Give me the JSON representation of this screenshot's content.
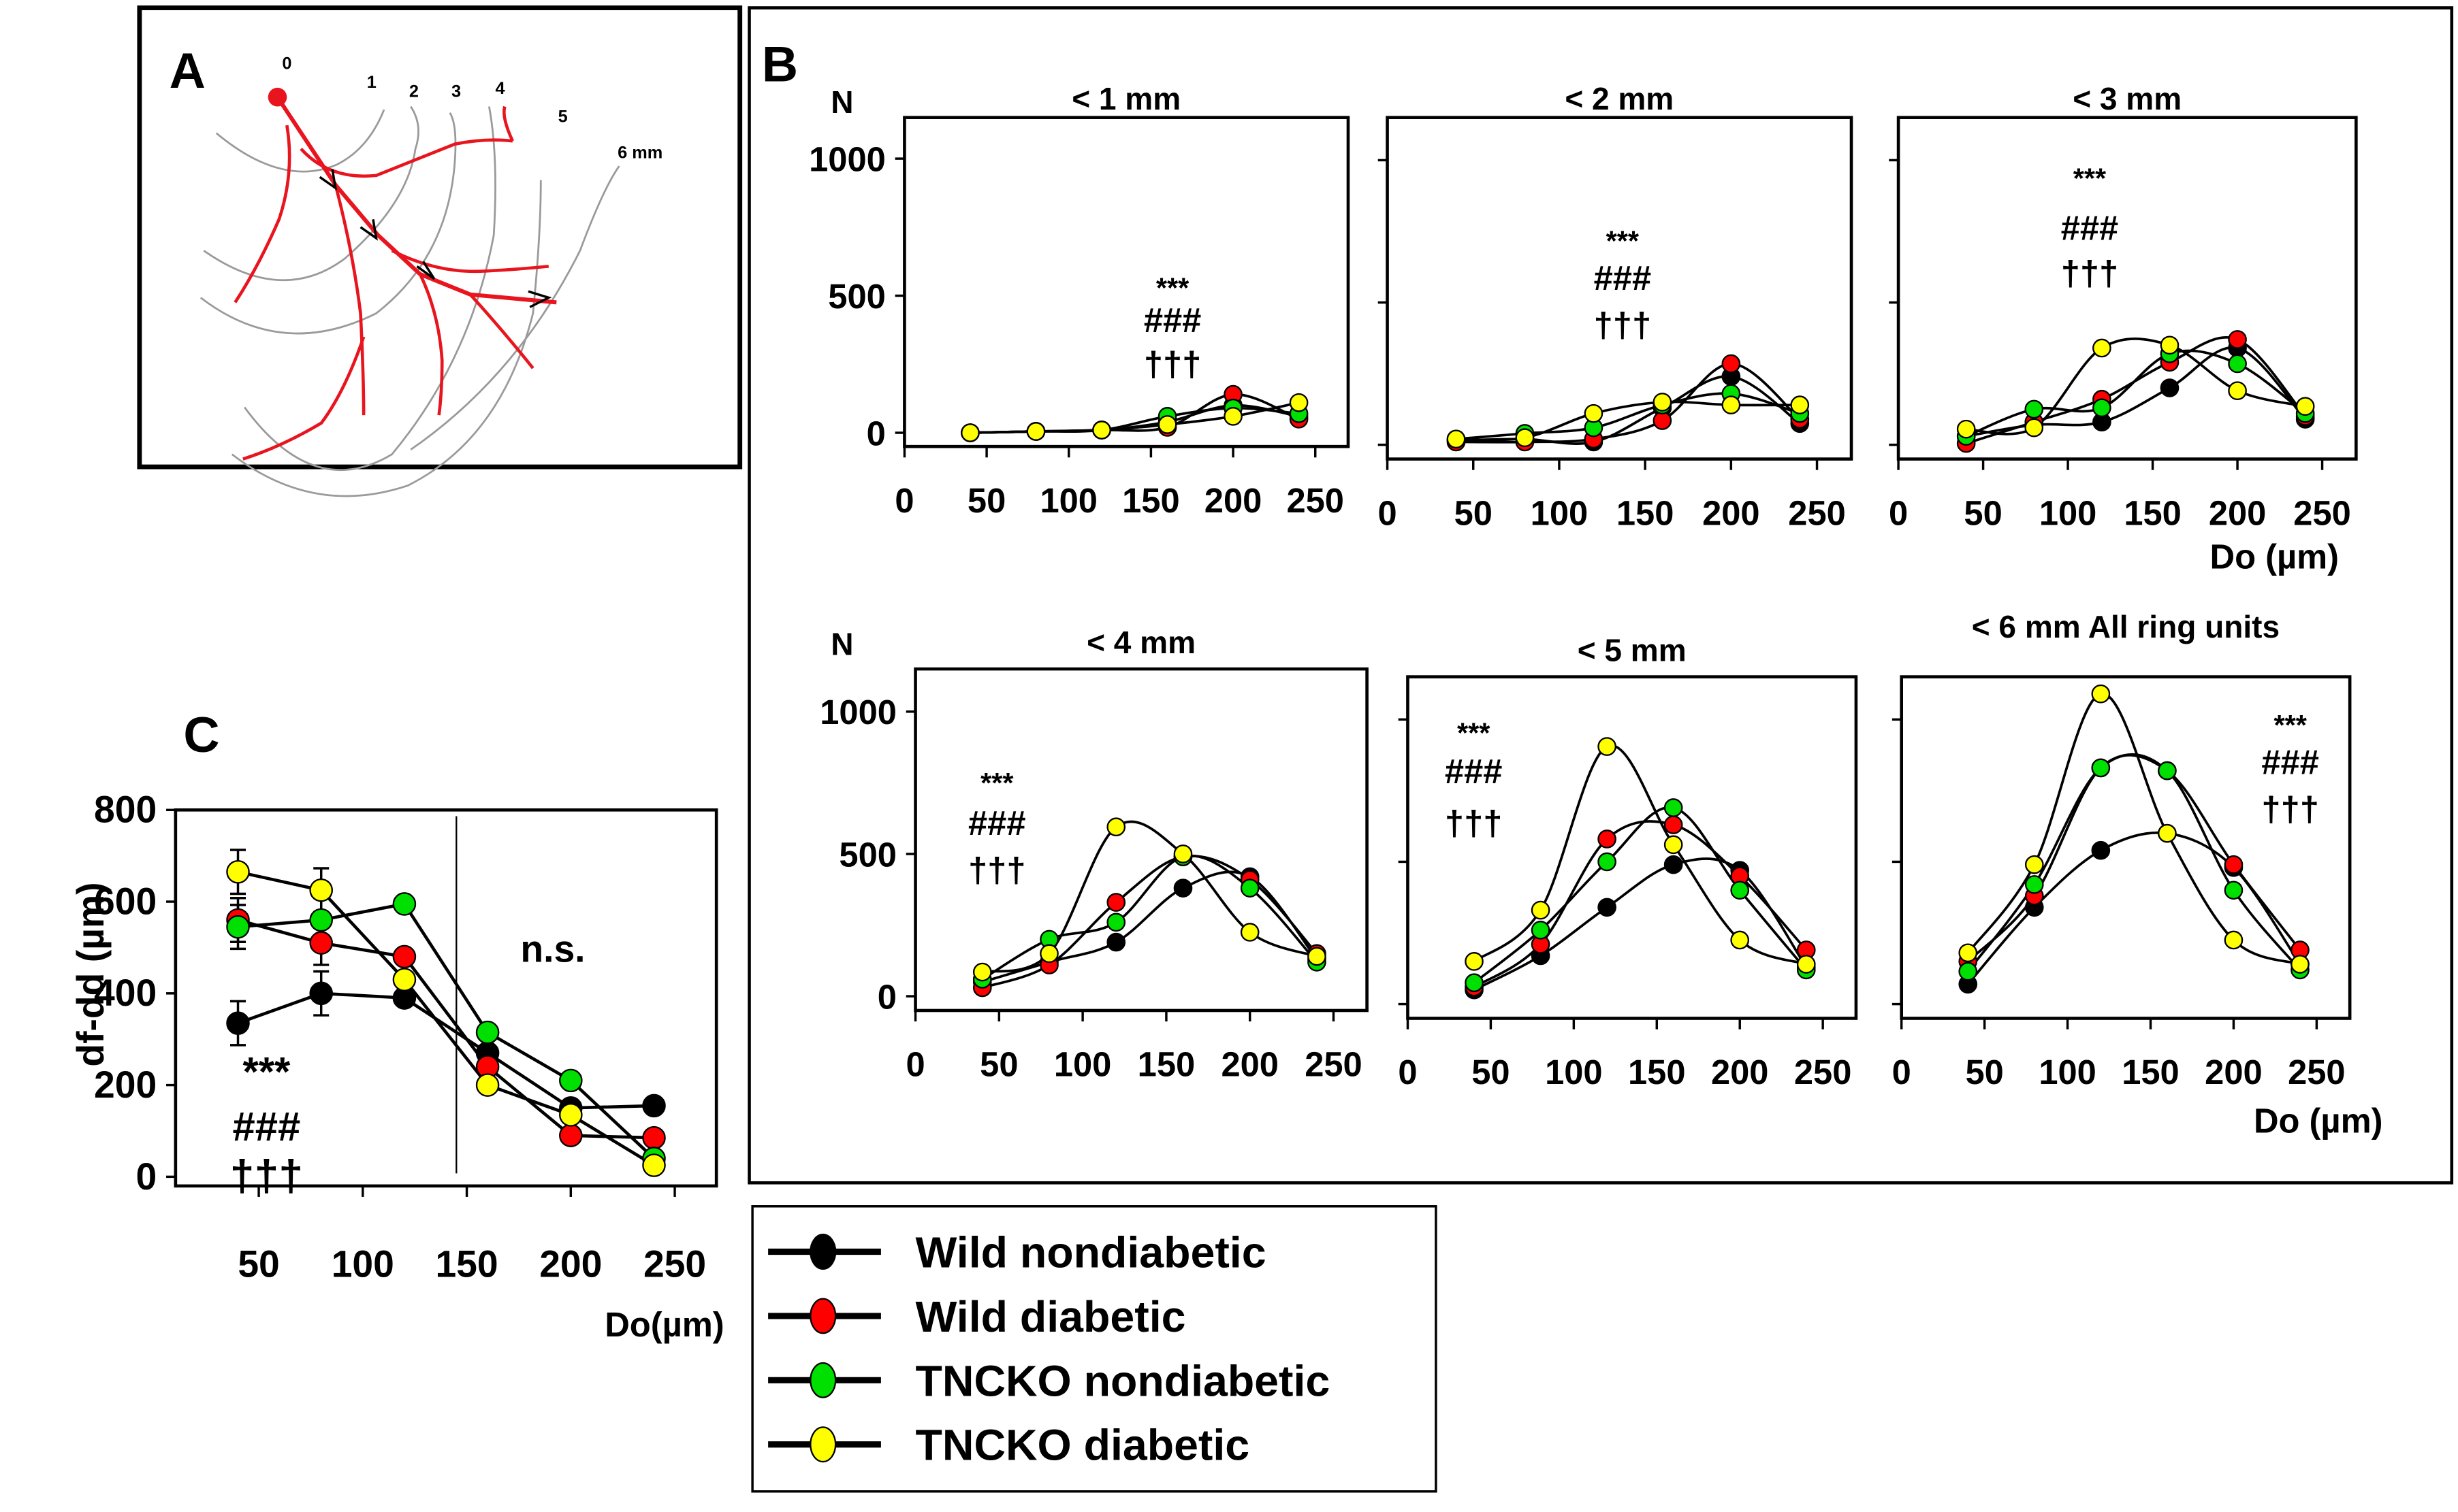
{
  "panel_a": {
    "label": "A",
    "ring_labels": [
      "0",
      "1",
      "2",
      "3",
      "4",
      "5",
      "6 mm"
    ]
  },
  "panel_b": {
    "label": "B",
    "ylabel": "N",
    "xlabel": "Do (µm)"
  },
  "panel_c": {
    "label": "C",
    "ns_label": "n.s."
  },
  "colors": {
    "Wild nondiabetic": "#000000",
    "Wild diabetic": "#ff0000",
    "TNCKO nondiabetic": "#00e000",
    "TNCKO diabetic": "#ffff00"
  },
  "legend": [
    {
      "label": "Wild  nondiabetic",
      "color": "#000000"
    },
    {
      "label": "Wild diabetic",
      "color": "#ff0000"
    },
    {
      "label": "TNCKO nondiabetic",
      "color": "#00e000"
    },
    {
      "label": "TNCKO diabetic",
      "color": "#ffff00"
    }
  ],
  "chart_data": [
    {
      "type": "line",
      "id": "b1",
      "title": "< 1 mm",
      "ylabel": "N",
      "xlabel": "",
      "x": [
        40,
        80,
        120,
        160,
        200,
        240
      ],
      "xlim": [
        0,
        270
      ],
      "ylim": [
        -50,
        1150
      ],
      "xticks": [
        0,
        50,
        100,
        150,
        200,
        250
      ],
      "yticks": [
        0,
        500,
        1000
      ],
      "annotation": [
        "***",
        "###",
        "†††"
      ],
      "series": [
        {
          "name": "Wild nondiabetic",
          "values": [
            0,
            5,
            10,
            40,
            100,
            60
          ]
        },
        {
          "name": "Wild diabetic",
          "values": [
            0,
            5,
            10,
            20,
            140,
            50
          ]
        },
        {
          "name": "TNCKO nondiabetic",
          "values": [
            0,
            5,
            10,
            60,
            90,
            70
          ]
        },
        {
          "name": "TNCKO diabetic",
          "values": [
            0,
            5,
            10,
            30,
            60,
            110
          ]
        }
      ]
    },
    {
      "type": "line",
      "id": "b2",
      "title": "< 2 mm",
      "ylabel": "",
      "xlabel": "",
      "x": [
        40,
        80,
        120,
        160,
        200,
        240
      ],
      "xlim": [
        0,
        270
      ],
      "ylim": [
        -50,
        1150
      ],
      "xticks": [
        0,
        50,
        100,
        150,
        200,
        250
      ],
      "yticks": [
        0,
        500,
        1000
      ],
      "annotation": [
        "***",
        "###",
        "†††"
      ],
      "series": [
        {
          "name": "Wild nondiabetic",
          "values": [
            15,
            20,
            10,
            130,
            240,
            75
          ]
        },
        {
          "name": "Wild diabetic",
          "values": [
            10,
            10,
            20,
            85,
            285,
            90
          ]
        },
        {
          "name": "TNCKO nondiabetic",
          "values": [
            20,
            40,
            60,
            140,
            180,
            110
          ]
        },
        {
          "name": "TNCKO diabetic",
          "values": [
            20,
            25,
            110,
            150,
            140,
            140
          ]
        }
      ]
    },
    {
      "type": "line",
      "id": "b3",
      "title": "< 3 mm",
      "ylabel": "",
      "xlabel": "Do (µm)",
      "x": [
        40,
        80,
        120,
        160,
        200,
        240
      ],
      "xlim": [
        0,
        270
      ],
      "ylim": [
        -50,
        1150
      ],
      "xticks": [
        0,
        50,
        100,
        150,
        200,
        250
      ],
      "yticks": [
        0,
        500,
        1000
      ],
      "annotation": [
        "***",
        "###",
        "†††"
      ],
      "series": [
        {
          "name": "Wild nondiabetic",
          "values": [
            30,
            70,
            80,
            200,
            340,
            90
          ]
        },
        {
          "name": "Wild diabetic",
          "values": [
            5,
            80,
            160,
            290,
            370,
            100
          ]
        },
        {
          "name": "TNCKO nondiabetic",
          "values": [
            30,
            125,
            130,
            320,
            285,
            110
          ]
        },
        {
          "name": "TNCKO diabetic",
          "values": [
            55,
            60,
            340,
            350,
            190,
            135
          ]
        }
      ]
    },
    {
      "type": "line",
      "id": "b4",
      "title": "< 4 mm",
      "ylabel": "N",
      "xlabel": "",
      "x": [
        40,
        80,
        120,
        160,
        200,
        240
      ],
      "xlim": [
        0,
        270
      ],
      "ylim": [
        -50,
        1150
      ],
      "xticks": [
        0,
        50,
        100,
        150,
        200,
        250
      ],
      "yticks": [
        0,
        500,
        1000
      ],
      "annotation": [
        "***",
        "###",
        "†††"
      ],
      "series": [
        {
          "name": "Wild nondiabetic",
          "values": [
            50,
            120,
            190,
            380,
            420,
            130
          ]
        },
        {
          "name": "Wild diabetic",
          "values": [
            30,
            110,
            330,
            490,
            410,
            150
          ]
        },
        {
          "name": "TNCKO nondiabetic",
          "values": [
            60,
            200,
            260,
            490,
            380,
            120
          ]
        },
        {
          "name": "TNCKO diabetic",
          "values": [
            85,
            150,
            595,
            500,
            225,
            140
          ]
        }
      ]
    },
    {
      "type": "line",
      "id": "b5",
      "title": "< 5 mm",
      "ylabel": "",
      "xlabel": "",
      "x": [
        40,
        80,
        120,
        160,
        200,
        240
      ],
      "xlim": [
        0,
        270
      ],
      "ylim": [
        -50,
        1150
      ],
      "xticks": [
        0,
        50,
        100,
        150,
        200,
        250
      ],
      "yticks": [
        0,
        500,
        1000
      ],
      "annotation": [
        "***",
        "###",
        "†††"
      ],
      "series": [
        {
          "name": "Wild nondiabetic",
          "values": [
            50,
            170,
            340,
            490,
            470,
            130
          ]
        },
        {
          "name": "Wild diabetic",
          "values": [
            60,
            210,
            580,
            630,
            450,
            190
          ]
        },
        {
          "name": "TNCKO nondiabetic",
          "values": [
            75,
            260,
            500,
            690,
            400,
            120
          ]
        },
        {
          "name": "TNCKO diabetic",
          "values": [
            150,
            330,
            905,
            560,
            225,
            140
          ]
        }
      ]
    },
    {
      "type": "line",
      "id": "b6",
      "title": "< 6 mm All ring units",
      "ylabel": "",
      "xlabel": "Do (µm)",
      "x": [
        40,
        80,
        120,
        160,
        200,
        240
      ],
      "xlim": [
        0,
        270
      ],
      "ylim": [
        -50,
        1150
      ],
      "xticks": [
        0,
        50,
        100,
        150,
        200,
        250
      ],
      "yticks": [
        0,
        500,
        1000
      ],
      "annotation": [
        "***",
        "###",
        "†††"
      ],
      "series": [
        {
          "name": "Wild nondiabetic",
          "values": [
            70,
            340,
            540,
            600,
            480,
            140
          ]
        },
        {
          "name": "Wild diabetic",
          "values": [
            150,
            380,
            830,
            820,
            490,
            190
          ]
        },
        {
          "name": "TNCKO nondiabetic",
          "values": [
            115,
            420,
            830,
            820,
            400,
            120
          ]
        },
        {
          "name": "TNCKO diabetic",
          "values": [
            180,
            490,
            1090,
            600,
            225,
            140
          ]
        }
      ]
    },
    {
      "type": "line",
      "id": "c",
      "title": "",
      "ylabel": "df-dd (µm)",
      "xlabel": "Do(µm)",
      "x": [
        40,
        80,
        120,
        160,
        200,
        240
      ],
      "xlim": [
        10,
        270
      ],
      "ylim": [
        -20,
        800
      ],
      "xticks": [
        50,
        100,
        150,
        200,
        250
      ],
      "yticks": [
        0,
        200,
        400,
        600,
        800
      ],
      "annotation": [
        "***",
        "###",
        "†††"
      ],
      "divider_x": 145,
      "series": [
        {
          "name": "Wild nondiabetic",
          "values": [
            335,
            400,
            390,
            270,
            150,
            155
          ]
        },
        {
          "name": "Wild diabetic",
          "values": [
            560,
            510,
            480,
            240,
            90,
            85
          ]
        },
        {
          "name": "TNCKO nondiabetic",
          "values": [
            545,
            560,
            595,
            315,
            210,
            40
          ]
        },
        {
          "name": "TNCKO diabetic",
          "values": [
            665,
            625,
            430,
            200,
            135,
            25
          ]
        }
      ]
    }
  ]
}
